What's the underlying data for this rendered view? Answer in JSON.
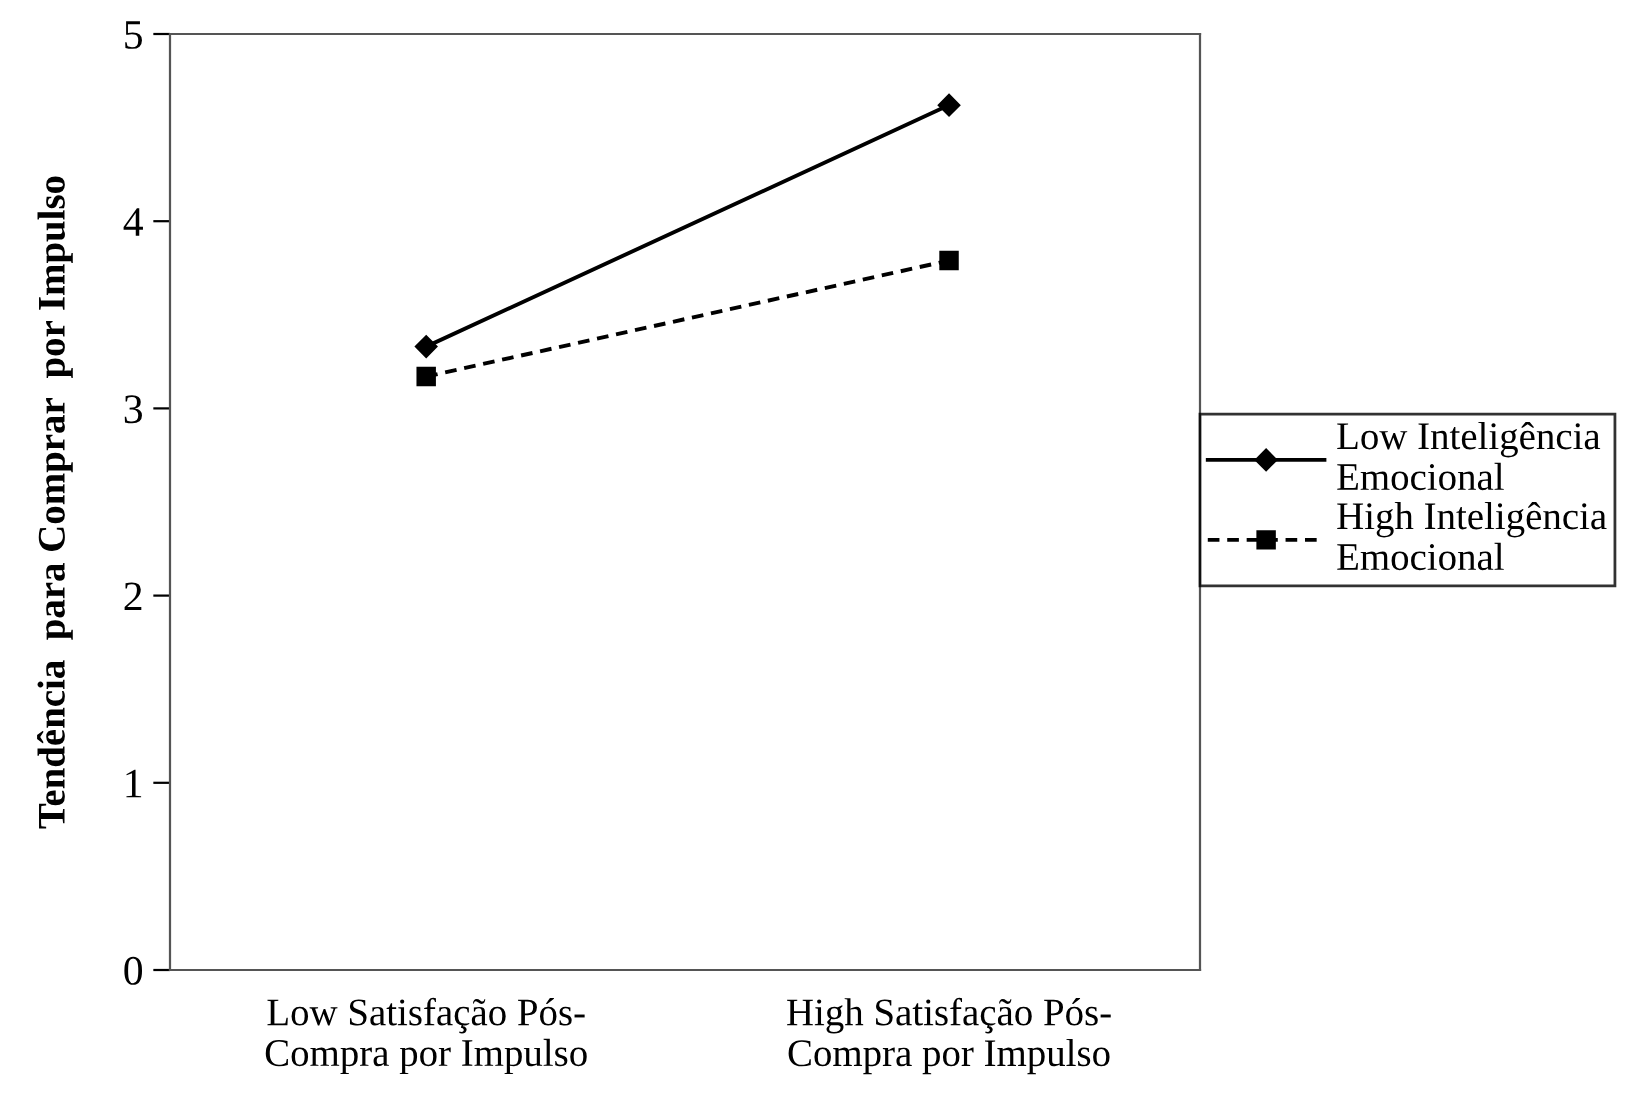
{
  "chart_data": {
    "type": "line",
    "ylabel": "Tendência  para Comprar  por Impulso",
    "categories": [
      "Low Satisfação Pós-\nCompra por Impulso",
      "High Satisfação Pós-\nCompra por Impulso"
    ],
    "series": [
      {
        "name": "Low Inteligência\nEmocional",
        "color": "#000000",
        "marker": "diamond",
        "line_style": "solid",
        "values": [
          3.33,
          4.62
        ]
      },
      {
        "name": "High Inteligência\nEmocional",
        "color": "#000000",
        "marker": "square",
        "line_style": "dashed",
        "values": [
          3.17,
          3.79
        ]
      }
    ],
    "ylim": [
      0,
      5
    ],
    "yticks": [
      0,
      1,
      2,
      3,
      4,
      5
    ],
    "grid": false,
    "legend": "right"
  }
}
